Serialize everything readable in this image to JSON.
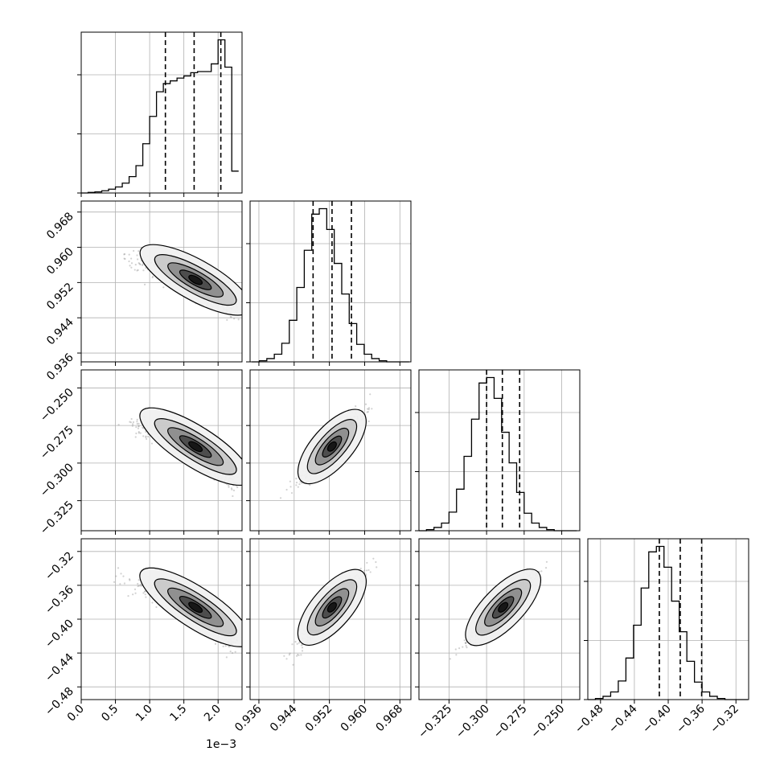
{
  "chart_data": {
    "type": "corner",
    "offset_label": "1e−3",
    "params": [
      {
        "lim": [
          0.0,
          2.35
        ],
        "ticks": [
          0.0,
          0.5,
          1.0,
          1.5,
          2.0
        ],
        "tick_labels": [
          "0.0",
          "0.5",
          "1.0",
          "1.5",
          "2.0"
        ]
      },
      {
        "lim": [
          0.934,
          0.9705
        ],
        "ticks": [
          0.936,
          0.944,
          0.952,
          0.96,
          0.968
        ],
        "tick_labels": [
          "0.936",
          "0.944",
          "0.952",
          "0.960",
          "0.968"
        ]
      },
      {
        "lim": [
          -0.345,
          -0.238
        ],
        "ticks": [
          -0.325,
          -0.3,
          -0.275,
          -0.25
        ],
        "tick_labels": [
          "−0.325",
          "−0.300",
          "−0.275",
          "−0.250"
        ]
      },
      {
        "lim": [
          -0.495,
          -0.305
        ],
        "ticks": [
          -0.48,
          -0.44,
          -0.4,
          -0.36,
          -0.32
        ],
        "tick_labels": [
          "−0.48",
          "−0.44",
          "−0.40",
          "−0.36",
          "−0.32"
        ]
      }
    ],
    "histograms": [
      {
        "param": 0,
        "bins": [
          0.0,
          0.1,
          0.2,
          0.3,
          0.4,
          0.5,
          0.6,
          0.7,
          0.8,
          0.9,
          1.0,
          1.1,
          1.2,
          1.3,
          1.4,
          1.5,
          1.6,
          1.7,
          1.8,
          1.9,
          2.0,
          2.1,
          2.2,
          2.3
        ],
        "counts": [
          0,
          1,
          2,
          4,
          7,
          11,
          18,
          30,
          50,
          90,
          140,
          185,
          200,
          205,
          210,
          214,
          220,
          222,
          222,
          236,
          280,
          230,
          40
        ],
        "quantiles": [
          1.23,
          1.65,
          2.04
        ]
      },
      {
        "param": 1,
        "bins": [
          0.9344,
          0.9361,
          0.9378,
          0.9395,
          0.9412,
          0.9429,
          0.9446,
          0.9463,
          0.948,
          0.9497,
          0.9514,
          0.9531,
          0.9548,
          0.9565,
          0.9582,
          0.9599,
          0.9616,
          0.9633,
          0.965,
          0.9667,
          0.9684,
          0.9701
        ],
        "counts": [
          0,
          1,
          3,
          7,
          17,
          38,
          68,
          102,
          135,
          140,
          121,
          90,
          62,
          35,
          16,
          7,
          3,
          1,
          0,
          0,
          0
        ],
        "quantiles": [
          0.9483,
          0.9526,
          0.957
        ]
      },
      {
        "param": 2,
        "bins": [
          -0.345,
          -0.34,
          -0.335,
          -0.33,
          -0.325,
          -0.32,
          -0.315,
          -0.31,
          -0.305,
          -0.3,
          -0.295,
          -0.29,
          -0.285,
          -0.28,
          -0.275,
          -0.27,
          -0.265,
          -0.26,
          -0.255,
          -0.25,
          -0.245,
          -0.24
        ],
        "counts": [
          0,
          1,
          3,
          7,
          17,
          38,
          68,
          102,
          135,
          140,
          121,
          90,
          62,
          35,
          16,
          7,
          3,
          1,
          0,
          0,
          0
        ],
        "quantiles": [
          -0.3,
          -0.2895,
          -0.278
        ]
      },
      {
        "param": 3,
        "bins": [
          -0.495,
          -0.486,
          -0.477,
          -0.468,
          -0.459,
          -0.45,
          -0.441,
          -0.432,
          -0.423,
          -0.414,
          -0.405,
          -0.396,
          -0.387,
          -0.378,
          -0.369,
          -0.36,
          -0.351,
          -0.342,
          -0.333,
          -0.324,
          -0.315,
          -0.306
        ],
        "counts": [
          0,
          1,
          3,
          7,
          17,
          38,
          68,
          102,
          135,
          140,
          121,
          90,
          62,
          35,
          16,
          7,
          3,
          1,
          0,
          0,
          0
        ],
        "quantiles": [
          -0.4105,
          -0.3858,
          -0.3605
        ]
      }
    ],
    "scatter_pairs": [
      {
        "x_param": 0,
        "y_param": 1,
        "relation": "anti-correlated"
      },
      {
        "x_param": 0,
        "y_param": 2,
        "relation": "anti-correlated"
      },
      {
        "x_param": 1,
        "y_param": 2,
        "relation": "correlated"
      },
      {
        "x_param": 0,
        "y_param": 3,
        "relation": "anti-correlated"
      },
      {
        "x_param": 1,
        "y_param": 3,
        "relation": "correlated"
      },
      {
        "x_param": 2,
        "y_param": 3,
        "relation": "correlated"
      }
    ],
    "grid": true,
    "colors": {
      "points": "#7f7f7f",
      "contour_fill_levels": [
        "#f0f0f0",
        "#c8c8c8",
        "#8c8c8c",
        "#4a4a4a",
        "#141414"
      ]
    }
  }
}
